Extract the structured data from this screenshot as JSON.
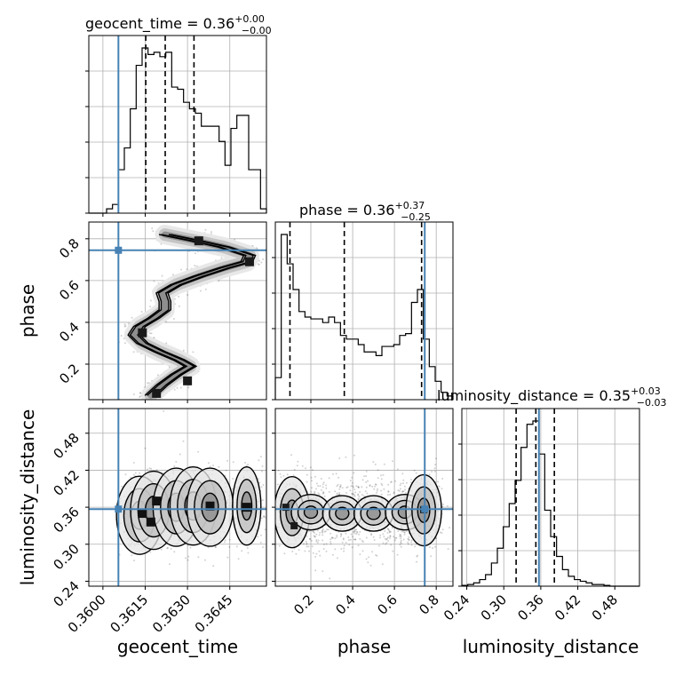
{
  "chart_data": {
    "type": "corner",
    "parameters": [
      "geocent_time",
      "phase",
      "luminosity_distance"
    ],
    "truth_color": "#4682b4",
    "truths": {
      "geocent_time": 0.36055,
      "phase": 0.745,
      "luminosity_distance": 0.357
    },
    "titles": [
      {
        "param": "geocent_time",
        "prefix": "geocent_time = 0.36",
        "plus": "+0.00",
        "minus": "−0.00"
      },
      {
        "param": "phase",
        "prefix": "phase = 0.36",
        "plus": "+0.37",
        "minus": "−0.25"
      },
      {
        "param": "luminosity_distance",
        "prefix": "luminosity_distance = 0.35",
        "plus": "+0.03",
        "minus": "−0.03"
      }
    ],
    "quantiles": {
      "geocent_time": [
        0.36152,
        0.36221,
        0.36323
      ],
      "phase": [
        0.1,
        0.36,
        0.73
      ],
      "luminosity_distance": [
        0.32,
        0.352,
        0.382
      ]
    },
    "ranges": {
      "geocent_time": [
        0.3595,
        0.3658
      ],
      "phase": [
        0.03,
        0.88
      ],
      "luminosity_distance": [
        0.232,
        0.52
      ]
    },
    "ticks": {
      "geocent_time": {
        "values": [
          0.36,
          0.3615,
          0.363,
          0.3645
        ],
        "labels": [
          "0.3600",
          "0.3615",
          "0.3630",
          "0.3645"
        ]
      },
      "phase": {
        "values": [
          0.2,
          0.4,
          0.6,
          0.8
        ],
        "labels": [
          "0.2",
          "0.4",
          "0.6",
          "0.8"
        ]
      },
      "luminosity_distance": {
        "values": [
          0.24,
          0.3,
          0.36,
          0.42,
          0.48
        ],
        "labels": [
          "0.24",
          "0.30",
          "0.36",
          "0.42",
          "0.48"
        ]
      }
    },
    "hist_1d": {
      "geocent_time": {
        "edges": [
          0.3595,
          0.35971,
          0.35992,
          0.36013,
          0.36034,
          0.36055,
          0.36076,
          0.36097,
          0.36118,
          0.36139,
          0.3616,
          0.36181,
          0.36202,
          0.36223,
          0.36244,
          0.36265,
          0.36286,
          0.36307,
          0.36328,
          0.36349,
          0.3637,
          0.36391,
          0.36412,
          0.36433,
          0.36454,
          0.36475,
          0.36496,
          0.36517,
          0.36538,
          0.36559,
          0.3658
        ],
        "counts": [
          0,
          0,
          0,
          0.02,
          0.04,
          0.2,
          0.3,
          0.48,
          0.68,
          0.76,
          0.73,
          0.74,
          0.72,
          0.74,
          0.58,
          0.57,
          0.51,
          0.48,
          0.46,
          0.4,
          0.4,
          0.4,
          0.33,
          0.22,
          0.39,
          0.45,
          0.45,
          0.2,
          0.2,
          0.02
        ]
      },
      "phase": {
        "edges": [
          0.03,
          0.0583,
          0.0867,
          0.115,
          0.1433,
          0.1717,
          0.2,
          0.2283,
          0.2567,
          0.285,
          0.3133,
          0.3417,
          0.37,
          0.3983,
          0.4267,
          0.455,
          0.4833,
          0.5117,
          0.54,
          0.5683,
          0.5967,
          0.625,
          0.6533,
          0.6817,
          0.71,
          0.7383,
          0.7667,
          0.795,
          0.8233,
          0.8517,
          0.88
        ],
        "counts": [
          0.12,
          0.9,
          0.74,
          0.6,
          0.48,
          0.45,
          0.44,
          0.44,
          0.42,
          0.45,
          0.42,
          0.35,
          0.33,
          0.33,
          0.3,
          0.26,
          0.26,
          0.24,
          0.29,
          0.29,
          0.3,
          0.35,
          0.36,
          0.53,
          0.6,
          0.33,
          0.18,
          0.1,
          0.04,
          0.02
        ]
      },
      "luminosity_distance": {
        "edges": [
          0.232,
          0.2416,
          0.2512,
          0.2608,
          0.2704,
          0.28,
          0.2896,
          0.2992,
          0.3088,
          0.3184,
          0.328,
          0.3376,
          0.3472,
          0.3568,
          0.3664,
          0.376,
          0.3856,
          0.3952,
          0.4048,
          0.4144,
          0.424,
          0.4336,
          0.4432,
          0.4528,
          0.4624,
          0.472,
          0.4816,
          0.4912,
          0.5008,
          0.5104,
          0.52
        ],
        "counts": [
          0.005,
          0.01,
          0.02,
          0.04,
          0.07,
          0.14,
          0.23,
          0.36,
          0.5,
          0.64,
          0.84,
          0.98,
          1.0,
          0.8,
          0.46,
          0.3,
          0.18,
          0.1,
          0.06,
          0.04,
          0.03,
          0.02,
          0.01,
          0.01,
          0.005,
          0,
          0,
          0,
          0,
          0
        ]
      }
    },
    "hist_2d": {
      "phase_vs_geocent_time": {
        "path": [
          [
            0.3617,
            0.05
          ],
          [
            0.3621,
            0.1
          ],
          [
            0.3626,
            0.15
          ],
          [
            0.3631,
            0.19
          ],
          [
            0.3627,
            0.22
          ],
          [
            0.362,
            0.26
          ],
          [
            0.3614,
            0.3
          ],
          [
            0.3611,
            0.34
          ],
          [
            0.3613,
            0.38
          ],
          [
            0.3618,
            0.42
          ],
          [
            0.3622,
            0.46
          ],
          [
            0.3622,
            0.5
          ],
          [
            0.3621,
            0.54
          ],
          [
            0.3626,
            0.58
          ],
          [
            0.3634,
            0.62
          ],
          [
            0.3643,
            0.66
          ],
          [
            0.3651,
            0.69
          ],
          [
            0.3652,
            0.72
          ],
          [
            0.3643,
            0.76
          ],
          [
            0.3633,
            0.79
          ],
          [
            0.3622,
            0.82
          ]
        ],
        "peaks": [
          [
            0.3619,
            0.06
          ],
          [
            0.363,
            0.12
          ],
          [
            0.3652,
            0.69
          ],
          [
            0.3634,
            0.79
          ],
          [
            0.3614,
            0.35
          ]
        ]
      },
      "luminosity_distance_vs_geocent_time": {
        "centers": [
          [
            0.3613,
            0.347
          ],
          [
            0.3618,
            0.355
          ],
          [
            0.3626,
            0.36
          ],
          [
            0.3632,
            0.362
          ],
          [
            0.3638,
            0.36
          ],
          [
            0.3651,
            0.362
          ]
        ],
        "peaks": [
          [
            0.3614,
            0.35
          ],
          [
            0.3617,
            0.336
          ],
          [
            0.3619,
            0.37
          ],
          [
            0.3638,
            0.362
          ],
          [
            0.3651,
            0.36
          ]
        ]
      },
      "luminosity_distance_vs_phase": {
        "centers": [
          [
            0.11,
            0.352
          ],
          [
            0.2,
            0.352
          ],
          [
            0.35,
            0.35
          ],
          [
            0.5,
            0.35
          ],
          [
            0.65,
            0.352
          ],
          [
            0.74,
            0.355
          ]
        ],
        "peaks": [
          [
            0.08,
            0.36
          ],
          [
            0.74,
            0.356
          ],
          [
            0.12,
            0.33
          ]
        ]
      }
    }
  }
}
